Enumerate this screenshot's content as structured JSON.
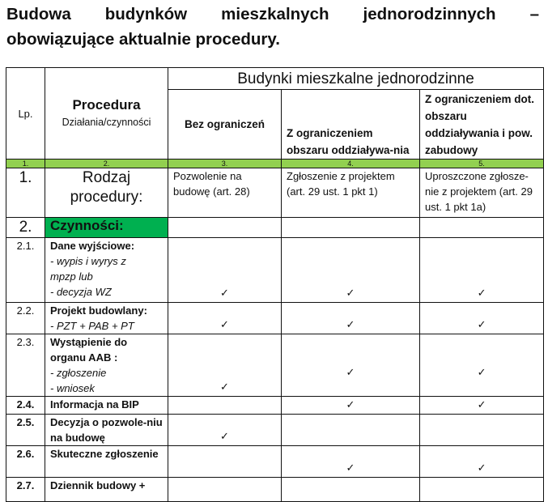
{
  "title": {
    "line1_words": [
      "Budowa",
      "budynków",
      "mieszkalnych",
      "jednorodzinnych",
      "–"
    ],
    "line2": "obowiązujące aktualnie procedury."
  },
  "header": {
    "lp": "Lp.",
    "procedure": "Procedura",
    "procedure_sub": "Działania/czynności",
    "group": "Budynki mieszkalne jednorodzinne",
    "cols": [
      "Bez ograniczeń",
      "Z ograniczeniem obszaru oddziaływa-nia",
      "Z ograniczeniem dot. obszaru oddziaływania i pow. zabudowy"
    ],
    "numbers": [
      "1.",
      "2.",
      "3.",
      "4.",
      "5."
    ]
  },
  "row1": {
    "lp": "1.",
    "label": "Rodzaj procedury:",
    "cells": [
      "Pozwolenie na budowę (art. 28)",
      "Zgłoszenie z projektem (art. 29 ust. 1 pkt 1)",
      "Uproszczone zgłosze-nie z projektem (art. 29 ust. 1 pkt 1a)"
    ]
  },
  "row2": {
    "lp": "2.",
    "label": "Czynności:"
  },
  "check_symbol": "✓",
  "rows": [
    {
      "lp": "2.1.",
      "title": "Dane wyjściowe:",
      "items": [
        "- wypis i wyrys z",
        "mpzp  lub",
        "- decyzja WZ"
      ],
      "checks": [
        true,
        true,
        true
      ]
    },
    {
      "lp": "2.2.",
      "title": "Projekt budowlany:",
      "items": [
        "- PZT + PAB + PT"
      ],
      "checks": [
        true,
        true,
        true
      ]
    },
    {
      "lp": "2.3.",
      "title": "Wystąpienie do organu AAB :",
      "items": [
        "- zgłoszenie",
        "- wniosek"
      ],
      "checks": [
        true,
        true,
        true
      ]
    },
    {
      "lp": "2.4.",
      "title": "Informacja na BIP",
      "items": [],
      "checks": [
        false,
        true,
        true
      ]
    },
    {
      "lp": "2.5.",
      "title": "Decyzja o pozwole-niu na budowę",
      "items": [],
      "checks": [
        true,
        false,
        false
      ]
    },
    {
      "lp": "2.6.",
      "title": "Skuteczne zgłoszenie",
      "items": [],
      "checks": [
        false,
        true,
        true
      ]
    },
    {
      "lp": "2.7.",
      "title": "Dziennik budowy +",
      "items": [],
      "checks": [
        false,
        false,
        false
      ]
    }
  ]
}
